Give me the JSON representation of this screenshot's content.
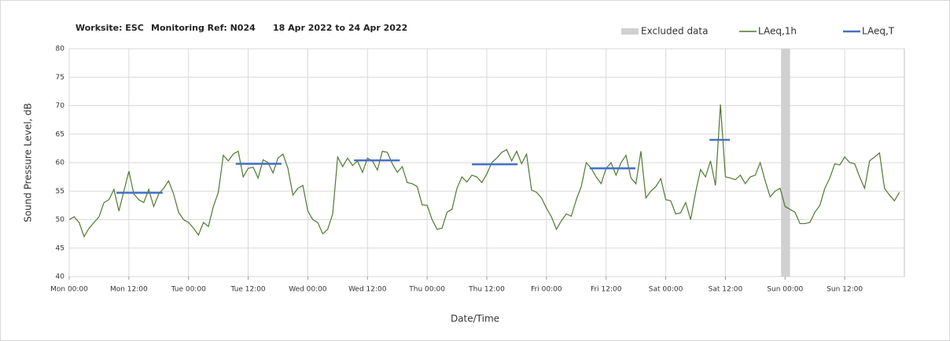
{
  "chart_data": {
    "type": "line",
    "title": [
      "Worksite: ESC",
      "Monitoring Ref: N024",
      "18 Apr 2022 to 24 Apr 2022"
    ],
    "xlabel": "Date/Time",
    "ylabel": "Sound Pressure Level, dB",
    "xlim": [
      0,
      168
    ],
    "ylim": [
      40,
      80
    ],
    "yticks": [
      40,
      45,
      50,
      55,
      60,
      65,
      70,
      75,
      80
    ],
    "xticks": [
      {
        "value": 0,
        "label": "Mon 00:00"
      },
      {
        "value": 12,
        "label": "Mon 12:00"
      },
      {
        "value": 24,
        "label": "Tue 00:00"
      },
      {
        "value": 36,
        "label": "Tue 12:00"
      },
      {
        "value": 48,
        "label": "Wed 00:00"
      },
      {
        "value": 60,
        "label": "Wed 12:00"
      },
      {
        "value": 72,
        "label": "Thu 00:00"
      },
      {
        "value": 84,
        "label": "Thu 12:00"
      },
      {
        "value": 96,
        "label": "Fri 00:00"
      },
      {
        "value": 108,
        "label": "Fri 12:00"
      },
      {
        "value": 120,
        "label": "Sat 00:00"
      },
      {
        "value": 132,
        "label": "Sat 12:00"
      },
      {
        "value": 144,
        "label": "Sun 00:00"
      },
      {
        "value": 156,
        "label": "Sun 12:00"
      }
    ],
    "grid": true,
    "x": [
      0,
      1,
      2,
      3,
      4,
      5,
      6,
      7,
      8,
      9,
      10,
      11,
      12,
      13,
      14,
      15,
      16,
      17,
      18,
      19,
      20,
      21,
      22,
      23,
      24,
      25,
      26,
      27,
      28,
      29,
      30,
      31,
      32,
      33,
      34,
      35,
      36,
      37,
      38,
      39,
      40,
      41,
      42,
      43,
      44,
      45,
      46,
      47,
      48,
      49,
      50,
      51,
      52,
      53,
      54,
      55,
      56,
      57,
      58,
      59,
      60,
      61,
      62,
      63,
      64,
      65,
      66,
      67,
      68,
      69,
      70,
      71,
      72,
      73,
      74,
      75,
      76,
      77,
      78,
      79,
      80,
      81,
      82,
      83,
      84,
      85,
      86,
      87,
      88,
      89,
      90,
      91,
      92,
      93,
      94,
      95,
      96,
      97,
      98,
      99,
      100,
      101,
      102,
      103,
      104,
      105,
      106,
      107,
      108,
      109,
      110,
      111,
      112,
      113,
      114,
      115,
      116,
      117,
      118,
      119,
      120,
      121,
      122,
      123,
      124,
      125,
      126,
      127,
      128,
      129,
      130,
      131,
      132,
      133,
      134,
      135,
      136,
      137,
      138,
      139,
      140,
      141,
      142,
      143,
      144,
      145,
      146,
      147,
      148,
      149,
      150,
      151,
      152,
      153,
      154,
      155,
      156,
      157,
      158,
      159,
      160,
      161,
      162,
      163,
      164,
      165,
      166,
      167
    ],
    "series": [
      {
        "name": "LAeq,1h",
        "color": "#4e7a2e",
        "values": [
          50,
          50.5,
          49.5,
          47,
          48.5,
          49.5,
          50.5,
          53,
          53.5,
          55.3,
          51.5,
          55,
          58.5,
          54.5,
          53.5,
          53,
          55.3,
          52.3,
          54.5,
          55.5,
          56.8,
          54.5,
          51.3,
          50,
          49.5,
          48.5,
          47.3,
          49.5,
          48.8,
          52.3,
          54.8,
          61.3,
          60.3,
          61.5,
          62,
          57.5,
          59,
          59.2,
          57.3,
          60.5,
          60,
          58.2,
          60.8,
          61.5,
          59,
          54.3,
          55.5,
          56,
          51.5,
          50,
          49.5,
          47.5,
          48.3,
          51,
          61,
          59.3,
          60.8,
          59.5,
          60.3,
          58.3,
          60.8,
          60.3,
          58.7,
          62,
          61.8,
          59.8,
          58.3,
          59.3,
          56.5,
          56.3,
          55.8,
          52.6,
          52.5,
          50,
          48.3,
          48.5,
          51.3,
          51.8,
          55.5,
          57.5,
          56.6,
          57.8,
          57.5,
          56.5,
          58,
          60,
          60.8,
          61.8,
          62.3,
          60.3,
          62,
          59.8,
          61.5,
          55.2,
          54.8,
          53.8,
          52,
          50.5,
          48.3,
          49.8,
          51,
          50.6,
          53.5,
          55.8,
          60,
          59,
          57.5,
          56.3,
          59,
          60,
          57.8,
          60,
          61.3,
          57.3,
          56.3,
          62,
          53.8,
          55,
          55.8,
          57.2,
          53.5,
          53.3,
          51,
          51.2,
          53,
          50,
          54.8,
          58.8,
          57.5,
          60.3,
          56,
          70.2,
          57.5,
          57.3,
          57,
          57.8,
          56.3,
          57.5,
          57.8,
          60,
          56.8,
          54,
          55,
          55.5,
          52.3,
          51.8,
          51.3,
          49.3,
          49.3,
          49.5,
          51.3,
          52.5,
          55.5,
          57.3,
          59.8,
          59.6,
          61,
          60,
          59.8,
          57.5,
          55.5,
          60.3,
          61,
          61.7,
          55.5,
          54.3,
          53.3,
          54.8
        ]
      }
    ],
    "laeq_t": {
      "name": "LAeq,T",
      "color": "#4472c4",
      "segments": [
        {
          "start": 9.5,
          "end": 18.8,
          "value": 54.7
        },
        {
          "start": 33.5,
          "end": 42.7,
          "value": 59.8
        },
        {
          "start": 57.3,
          "end": 66.5,
          "value": 60.4
        },
        {
          "start": 81,
          "end": 90.2,
          "value": 59.7
        },
        {
          "start": 104.7,
          "end": 113.9,
          "value": 59
        },
        {
          "start": 128.8,
          "end": 132.9,
          "value": 64
        }
      ]
    },
    "excluded": {
      "name": "Excluded data",
      "color": "#d0d0d0",
      "start": 143.2,
      "end": 145
    }
  }
}
